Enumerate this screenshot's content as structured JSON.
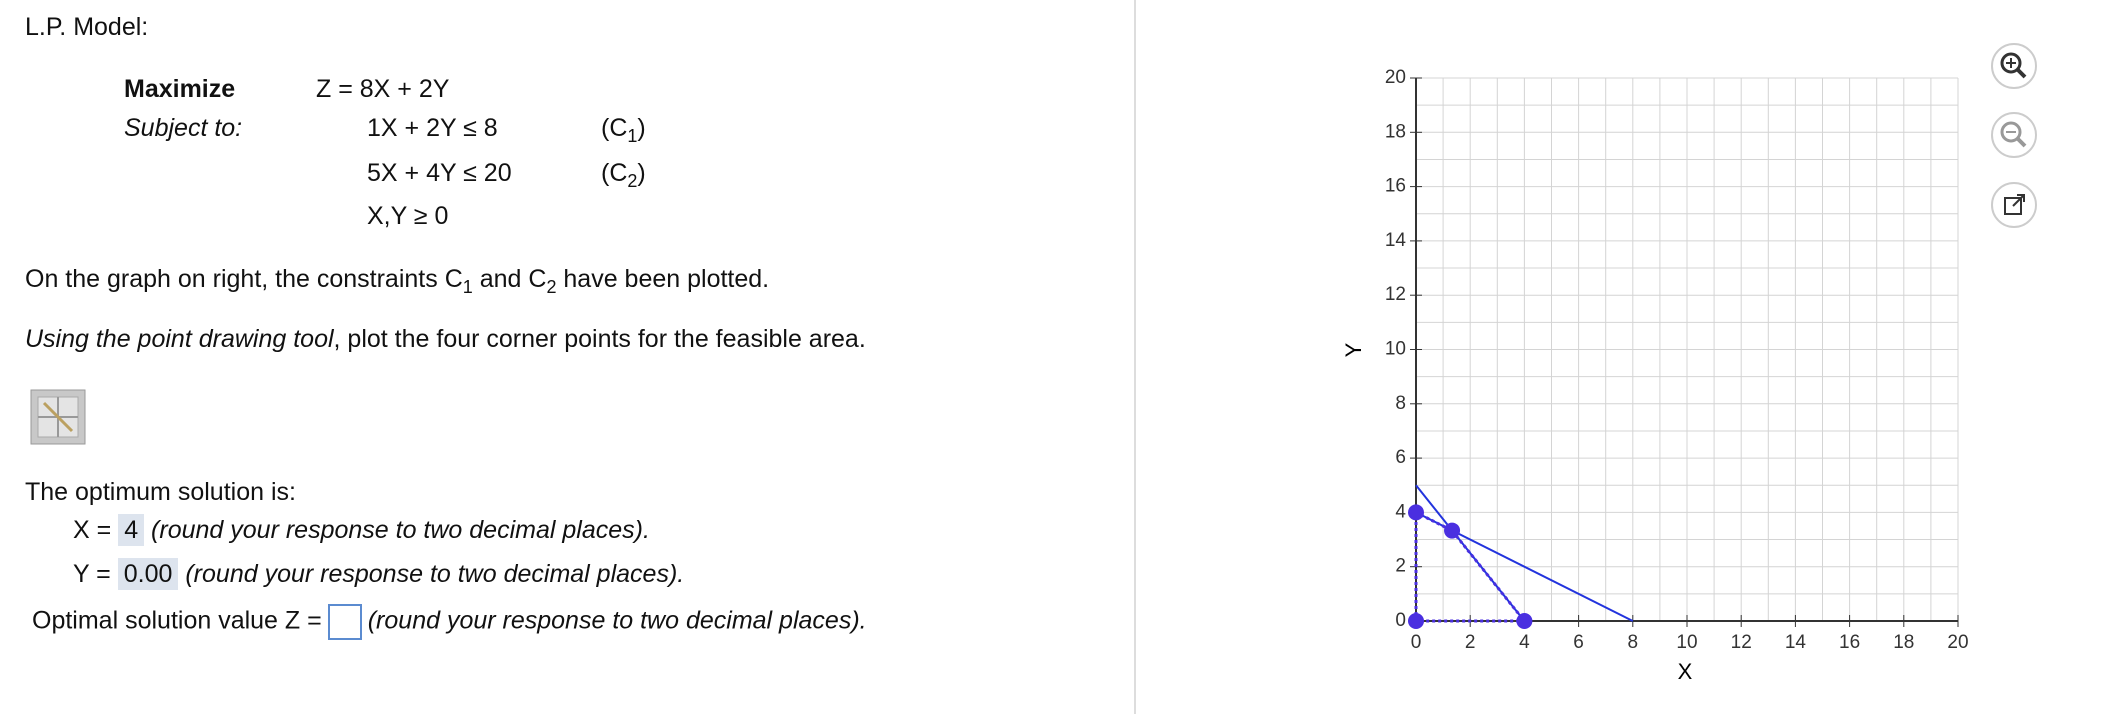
{
  "header": {
    "title": "L.P. Model:"
  },
  "model": {
    "objective_label": "Maximize",
    "objective": "Z = 8X + 2Y",
    "subject_label": "Subject to:",
    "constraints": [
      {
        "expr": "1X + 2Y ≤ 8",
        "label": "(C",
        "sub": "1",
        "close": ")"
      },
      {
        "expr": "5X + 4Y ≤ 20",
        "label": "(C",
        "sub": "2",
        "close": ")"
      },
      {
        "expr": "X,Y ≥ 0"
      }
    ]
  },
  "instructions": {
    "line1": [
      "On the graph on right, the constraints C",
      "1",
      " and C",
      "2",
      " have been plotted."
    ],
    "line2_italic": "Using the point drawing tool",
    "line2_rest": ", plot the four corner points for the feasible area."
  },
  "solution": {
    "title": "The optimum solution is:",
    "x_label": "X =",
    "x_value": "4",
    "y_label": "Y =",
    "y_value": "0.00",
    "z_label": "Optimal solution value Z  =",
    "note": "(round your response to two decimal places)."
  },
  "graph": {
    "xlabel": "X",
    "ylabel": "Y",
    "xlim": [
      0,
      20
    ],
    "ylim": [
      0,
      20
    ],
    "xticks": [
      0,
      2,
      4,
      6,
      8,
      10,
      12,
      14,
      16,
      18,
      20
    ],
    "yticks": [
      0,
      2,
      4,
      6,
      8,
      10,
      12,
      14,
      16,
      18,
      20
    ],
    "line_color": "#2233dd",
    "point_color": "#4a2fe0",
    "lines": [
      {
        "x": [
          0,
          8
        ],
        "y": [
          4,
          0
        ]
      },
      {
        "x": [
          0,
          4
        ],
        "y": [
          5,
          0
        ]
      }
    ],
    "points": {
      "x": [
        0,
        0,
        1.33,
        4
      ],
      "y": [
        0,
        4,
        3.33,
        0
      ]
    }
  }
}
